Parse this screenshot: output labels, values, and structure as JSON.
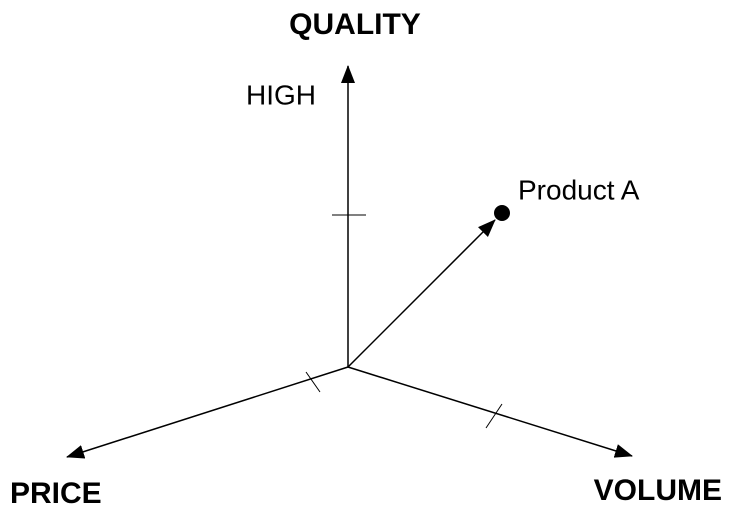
{
  "axes": {
    "quality": "QUALITY",
    "price": "PRICE",
    "volume": "VOLUME"
  },
  "labels": {
    "high": "HIGH",
    "point": "Product A"
  }
}
